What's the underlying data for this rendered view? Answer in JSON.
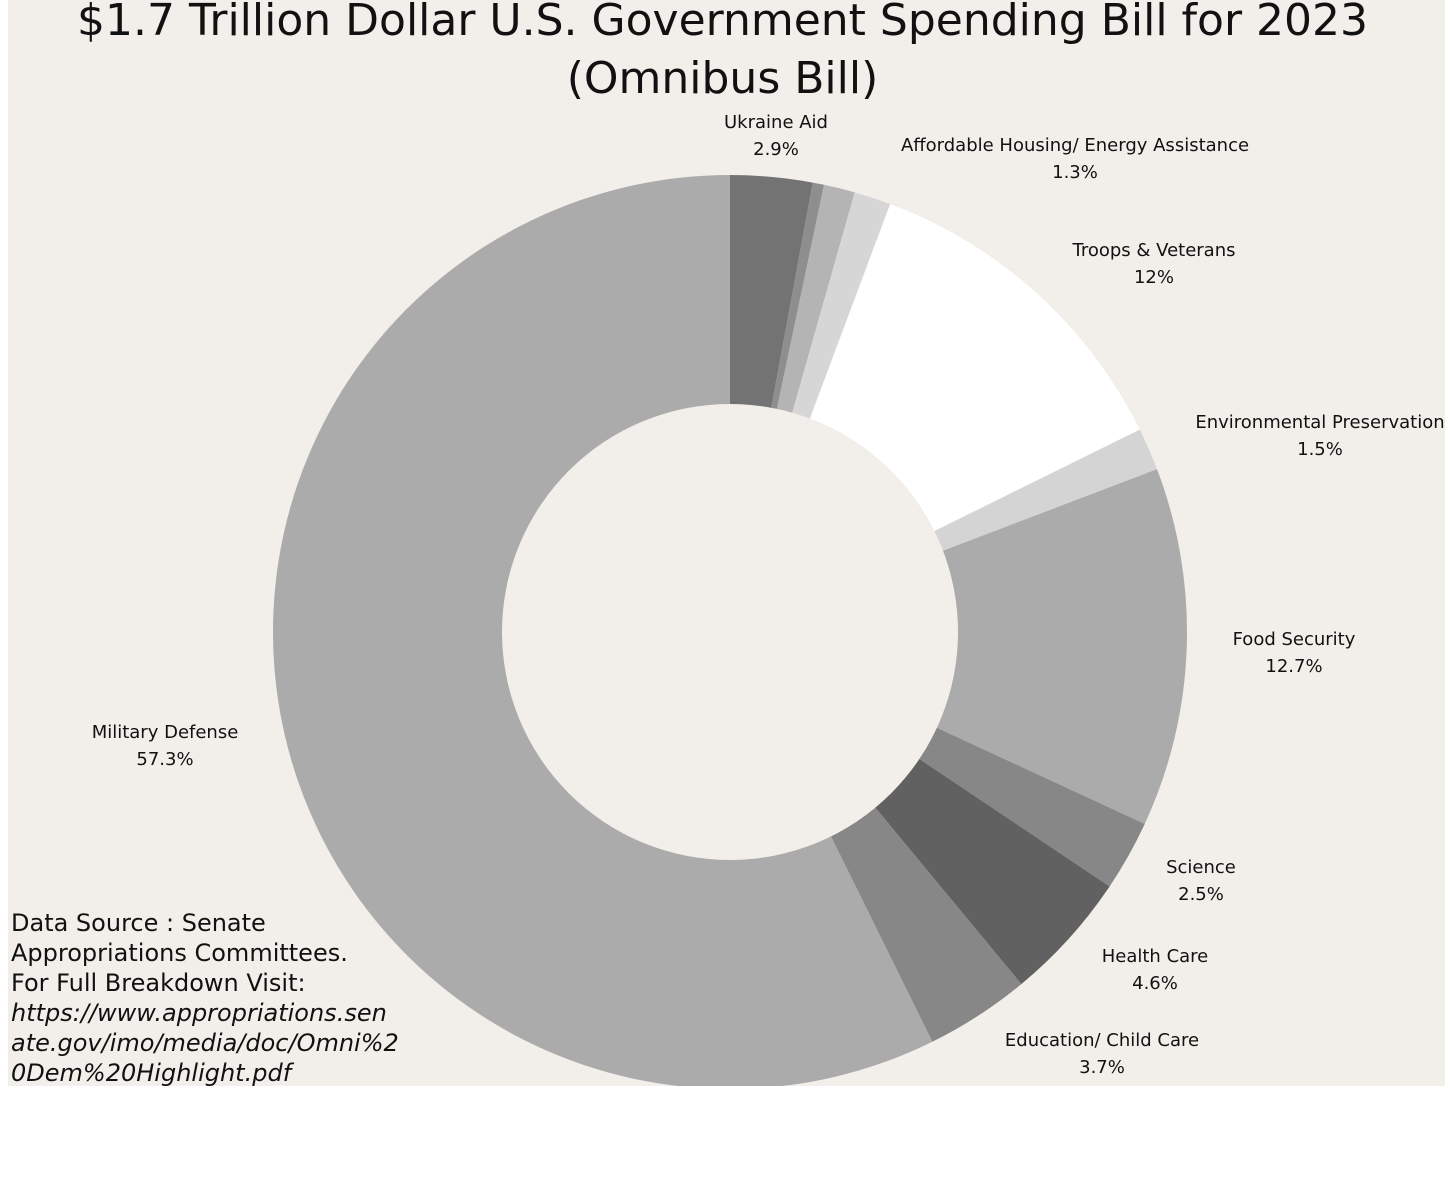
{
  "chart_data": {
    "type": "pie",
    "title": "$1.7 Trillion Dollar U.S. Government Spending Bill for 2023 (Omnibus Bill)",
    "title_lines": [
      "$1.7 Trillion Dollar U.S. Government Spending Bill for 2023",
      "(Omnibus Bill)"
    ],
    "style": "donut",
    "slices": [
      {
        "name": "Ukraine Aid",
        "value": 2.9,
        "label": "2.9%",
        "color": "#737373",
        "show_label": true
      },
      {
        "name": "",
        "value": 0.4,
        "label": "",
        "color": "#8e8e8e",
        "show_label": false
      },
      {
        "name": "",
        "value": 1.1,
        "label": "",
        "color": "#b4b4b4",
        "show_label": false
      },
      {
        "name": "Affordable Housing/ Energy Assistance",
        "value": 1.3,
        "label": "1.3%",
        "color": "#d6d6d6",
        "show_label": true
      },
      {
        "name": "Troops & Veterans",
        "value": 12,
        "label": "12%",
        "color": "#ffffff",
        "show_label": true
      },
      {
        "name": "Environmental Preservation",
        "value": 1.5,
        "label": "1.5%",
        "color": "#d4d4d4",
        "show_label": true
      },
      {
        "name": "Food Security",
        "value": 12.7,
        "label": "12.7%",
        "color": "#ababab",
        "show_label": true
      },
      {
        "name": "Science",
        "value": 2.5,
        "label": "2.5%",
        "color": "#878787",
        "show_label": true
      },
      {
        "name": "Health Care",
        "value": 4.6,
        "label": "4.6%",
        "color": "#616161",
        "show_label": true
      },
      {
        "name": "Education/ Child Care",
        "value": 3.7,
        "label": "3.7%",
        "color": "#878787",
        "show_label": true
      },
      {
        "name": "Military Defense",
        "value": 57.3,
        "label": "57.3%",
        "color": "#ababab",
        "show_label": true
      }
    ]
  },
  "source": {
    "line1": "Data Source : Senate",
    "line2": "Appropriations Committees.",
    "line3": "For Full Breakdown Visit:",
    "url": "https://www.appropriations.senate.gov/imo/media/doc/Omni%20Dem%20Highlight.pdf"
  },
  "colors": {
    "panel_background": "#f2efea",
    "page_background": "#ffffff",
    "text": "#111111"
  }
}
